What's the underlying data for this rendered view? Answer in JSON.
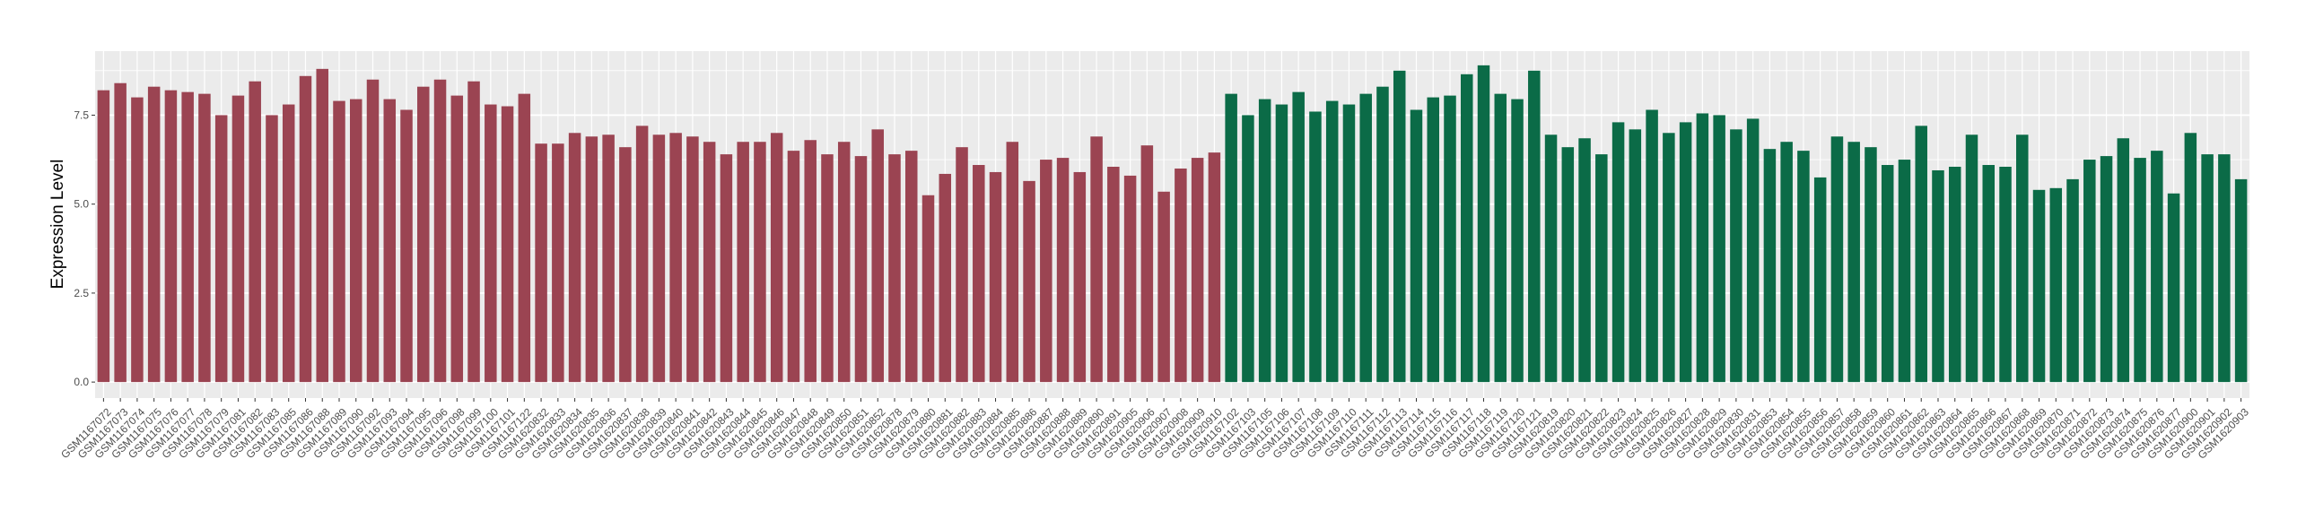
{
  "chart_data": {
    "type": "bar",
    "y_label": "Expression Level",
    "categories": [
      "GSM1167072",
      "GSM1167073",
      "GSM1167074",
      "GSM1167075",
      "GSM1167076",
      "GSM1167077",
      "GSM1167078",
      "GSM1167079",
      "GSM1167081",
      "GSM1167082",
      "GSM1167083",
      "GSM1167085",
      "GSM1167086",
      "GSM1167088",
      "GSM1167089",
      "GSM1167090",
      "GSM1167092",
      "GSM1167093",
      "GSM1167094",
      "GSM1167095",
      "GSM1167096",
      "GSM1167098",
      "GSM1167099",
      "GSM1167100",
      "GSM1167101",
      "GSM1167122",
      "GSM1620832",
      "GSM1620833",
      "GSM1620834",
      "GSM1620835",
      "GSM1620836",
      "GSM1620837",
      "GSM1620838",
      "GSM1620839",
      "GSM1620840",
      "GSM1620841",
      "GSM1620842",
      "GSM1620843",
      "GSM1620844",
      "GSM1620845",
      "GSM1620846",
      "GSM1620847",
      "GSM1620848",
      "GSM1620849",
      "GSM1620850",
      "GSM1620851",
      "GSM1620852",
      "GSM1620878",
      "GSM1620879",
      "GSM1620880",
      "GSM1620881",
      "GSM1620882",
      "GSM1620883",
      "GSM1620884",
      "GSM1620885",
      "GSM1620886",
      "GSM1620887",
      "GSM1620888",
      "GSM1620889",
      "GSM1620890",
      "GSM1620891",
      "GSM1620905",
      "GSM1620906",
      "GSM1620907",
      "GSM1620908",
      "GSM1620909",
      "GSM1620910",
      "GSM1167102",
      "GSM1167103",
      "GSM1167105",
      "GSM1167106",
      "GSM1167107",
      "GSM1167108",
      "GSM1167109",
      "GSM1167110",
      "GSM1167111",
      "GSM1167112",
      "GSM1167113",
      "GSM1167114",
      "GSM1167115",
      "GSM1167116",
      "GSM1167117",
      "GSM1167118",
      "GSM1167119",
      "GSM1167120",
      "GSM1167121",
      "GSM1620819",
      "GSM1620820",
      "GSM1620821",
      "GSM1620822",
      "GSM1620823",
      "GSM1620824",
      "GSM1620825",
      "GSM1620826",
      "GSM1620827",
      "GSM1620828",
      "GSM1620829",
      "GSM1620830",
      "GSM1620831",
      "GSM1620853",
      "GSM1620854",
      "GSM1620855",
      "GSM1620856",
      "GSM1620857",
      "GSM1620858",
      "GSM1620859",
      "GSM1620860",
      "GSM1620861",
      "GSM1620862",
      "GSM1620863",
      "GSM1620864",
      "GSM1620865",
      "GSM1620866",
      "GSM1620867",
      "GSM1620868",
      "GSM1620869",
      "GSM1620870",
      "GSM1620871",
      "GSM1620872",
      "GSM1620873",
      "GSM1620874",
      "GSM1620875",
      "GSM1620876",
      "GSM1620877",
      "GSM1620900",
      "GSM1620901",
      "GSM1620902",
      "GSM1620903"
    ],
    "values": [
      8.2,
      8.4,
      8.0,
      8.3,
      8.2,
      8.15,
      8.1,
      7.5,
      8.05,
      8.45,
      7.5,
      7.8,
      8.6,
      8.8,
      7.9,
      7.95,
      8.5,
      7.95,
      7.65,
      8.3,
      8.5,
      8.05,
      8.45,
      7.8,
      7.75,
      8.1,
      6.7,
      6.7,
      7.0,
      6.9,
      6.95,
      6.6,
      7.2,
      6.95,
      7.0,
      6.9,
      6.75,
      6.4,
      6.75,
      6.75,
      7.0,
      6.5,
      6.8,
      6.4,
      6.75,
      6.35,
      7.1,
      6.4,
      6.5,
      5.25,
      5.85,
      6.6,
      6.1,
      5.9,
      6.75,
      5.65,
      6.25,
      6.3,
      5.9,
      6.9,
      6.05,
      5.8,
      6.65,
      5.35,
      6.0,
      6.3,
      6.45,
      8.1,
      7.5,
      7.95,
      7.8,
      8.15,
      7.6,
      7.9,
      7.8,
      8.1,
      8.3,
      8.75,
      7.65,
      8.0,
      8.05,
      8.65,
      8.9,
      8.1,
      7.95,
      8.75,
      6.95,
      6.6,
      6.85,
      6.4,
      7.3,
      7.1,
      7.65,
      7.0,
      7.3,
      7.55,
      7.5,
      7.1,
      7.4,
      6.55,
      6.75,
      6.5,
      5.75,
      6.9,
      6.75,
      6.6,
      6.1,
      6.25,
      7.2,
      5.95,
      6.05,
      6.95,
      6.1,
      6.05,
      6.95,
      5.4,
      5.45,
      5.7,
      6.25,
      6.35,
      6.85,
      6.3,
      6.5,
      5.3,
      7.0,
      6.4,
      6.4,
      5.7
    ],
    "colors": [
      "#9b4452",
      "#9b4452",
      "#9b4452",
      "#9b4452",
      "#9b4452",
      "#9b4452",
      "#9b4452",
      "#9b4452",
      "#9b4452",
      "#9b4452",
      "#9b4452",
      "#9b4452",
      "#9b4452",
      "#9b4452",
      "#9b4452",
      "#9b4452",
      "#9b4452",
      "#9b4452",
      "#9b4452",
      "#9b4452",
      "#9b4452",
      "#9b4452",
      "#9b4452",
      "#9b4452",
      "#9b4452",
      "#9b4452",
      "#9b4452",
      "#9b4452",
      "#9b4452",
      "#9b4452",
      "#9b4452",
      "#9b4452",
      "#9b4452",
      "#9b4452",
      "#9b4452",
      "#9b4452",
      "#9b4452",
      "#9b4452",
      "#9b4452",
      "#9b4452",
      "#9b4452",
      "#9b4452",
      "#9b4452",
      "#9b4452",
      "#9b4452",
      "#9b4452",
      "#9b4452",
      "#9b4452",
      "#9b4452",
      "#9b4452",
      "#9b4452",
      "#9b4452",
      "#9b4452",
      "#9b4452",
      "#9b4452",
      "#9b4452",
      "#9b4452",
      "#9b4452",
      "#9b4452",
      "#9b4452",
      "#9b4452",
      "#9b4452",
      "#9b4452",
      "#9b4452",
      "#9b4452",
      "#9b4452",
      "#9b4452",
      "#0b6b47",
      "#0b6b47",
      "#0b6b47",
      "#0b6b47",
      "#0b6b47",
      "#0b6b47",
      "#0b6b47",
      "#0b6b47",
      "#0b6b47",
      "#0b6b47",
      "#0b6b47",
      "#0b6b47",
      "#0b6b47",
      "#0b6b47",
      "#0b6b47",
      "#0b6b47",
      "#0b6b47",
      "#0b6b47",
      "#0b6b47",
      "#0b6b47",
      "#0b6b47",
      "#0b6b47",
      "#0b6b47",
      "#0b6b47",
      "#0b6b47",
      "#0b6b47",
      "#0b6b47",
      "#0b6b47",
      "#0b6b47",
      "#0b6b47",
      "#0b6b47",
      "#0b6b47",
      "#0b6b47",
      "#0b6b47",
      "#0b6b47",
      "#0b6b47",
      "#0b6b47",
      "#0b6b47",
      "#0b6b47",
      "#0b6b47",
      "#0b6b47",
      "#0b6b47",
      "#0b6b47",
      "#0b6b47",
      "#0b6b47",
      "#0b6b47",
      "#0b6b47",
      "#0b6b47",
      "#0b6b47",
      "#0b6b47",
      "#0b6b47",
      "#0b6b47",
      "#0b6b47",
      "#0b6b47",
      "#0b6b47",
      "#0b6b47",
      "#0b6b47",
      "#0b6b47",
      "#0b6b47",
      "#0b6b47",
      "#0b6b47"
    ],
    "ylim": [
      -0.45,
      9.3
    ],
    "yticks": [
      {
        "value": 0,
        "label": "0.0"
      },
      {
        "value": 2.5,
        "label": "2.5"
      },
      {
        "value": 5,
        "label": "5.0"
      },
      {
        "value": 7.5,
        "label": "7.5"
      }
    ],
    "minor_yticks": [
      1.25,
      3.75,
      6.25,
      8.75
    ],
    "grid": true
  }
}
